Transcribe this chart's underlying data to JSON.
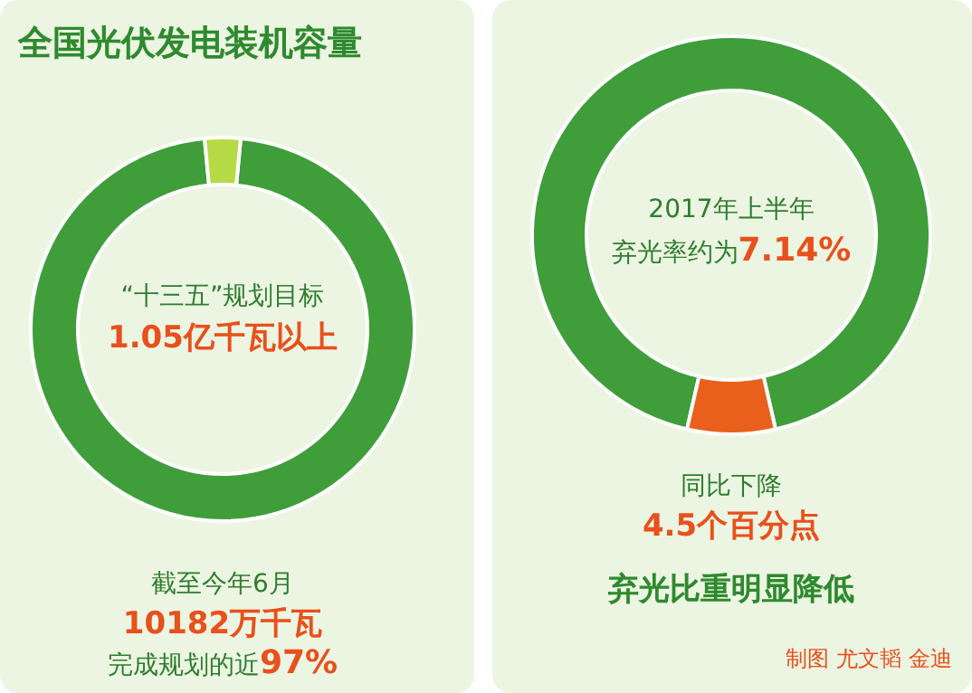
{
  "chart_data": [
    {
      "type": "donut",
      "title": "全国光伏发电装机容量",
      "categories": [
        null,
        null
      ],
      "values": [
        97,
        3
      ],
      "colors": [
        "#3f9e3a",
        "#b5da45"
      ],
      "annotations": [
        "“十三五”规划目标",
        "**1.05亿千瓦以上**",
        "截至今年6月",
        "**10182万千瓦**",
        "完成规划的近**97%**"
      ]
    },
    {
      "type": "donut",
      "categories": [
        null,
        null
      ],
      "values": [
        92.86,
        7.14
      ],
      "colors": [
        "#3f9e3a",
        "#e8601c"
      ],
      "annotations": [
        "2017年上半年",
        "弃光率约为**7.14%**",
        "同比下降",
        "**4.5个百分点**",
        "**弃光比重明显降低**",
        "制图 尤文韬 金迪"
      ]
    }
  ]
}
